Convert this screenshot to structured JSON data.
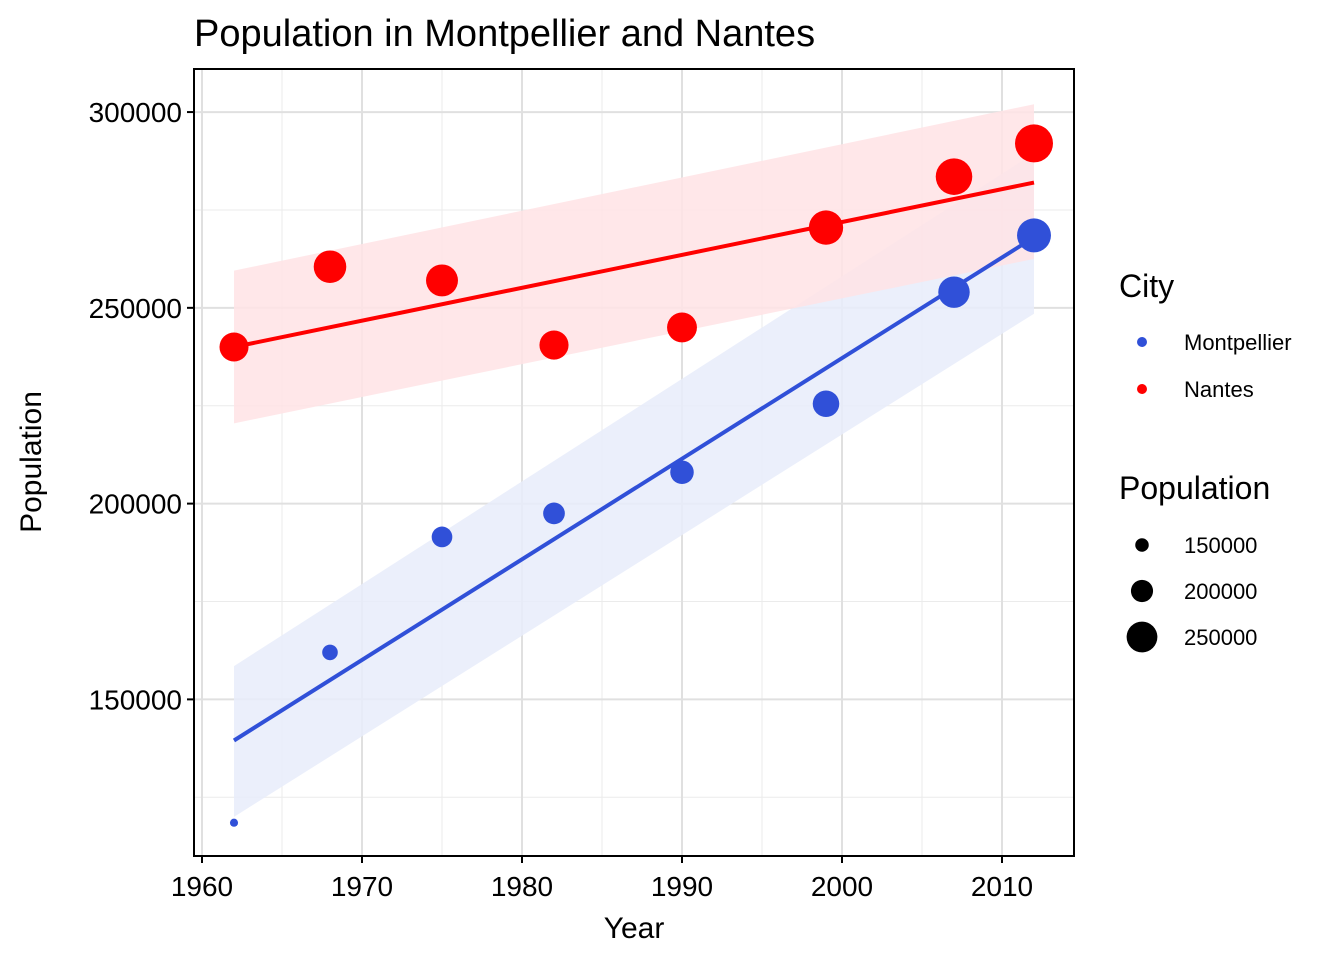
{
  "chart_data": {
    "type": "scatter",
    "title": "Population in Montpellier and Nantes",
    "xlabel": "Year",
    "ylabel": "Population",
    "xlim": [
      1959.5,
      2014.5
    ],
    "ylim": [
      110000,
      311000
    ],
    "xticks": [
      1960,
      1970,
      1980,
      1990,
      2000,
      2010
    ],
    "yticks": [
      150000,
      200000,
      250000,
      300000
    ],
    "xminor": [
      1965,
      1975,
      1985,
      1995,
      2005
    ],
    "yminor": [
      125000,
      175000,
      225000,
      275000
    ],
    "grid": true,
    "legend_position": "right",
    "legend": {
      "color_title": "City",
      "size_title": "Population",
      "size_levels": [
        {
          "label": "150000",
          "value": 150000
        },
        {
          "label": "200000",
          "value": 200000
        },
        {
          "label": "250000",
          "value": 250000
        }
      ]
    },
    "size_range": [
      118000,
      292000
    ],
    "series": [
      {
        "name": "Montpellier",
        "color": "#3050D8",
        "band_color": "#E8ECFA",
        "x": [
          1962,
          1968,
          1975,
          1982,
          1990,
          1999,
          2007,
          2012
        ],
        "y": [
          118500,
          162000,
          191500,
          197500,
          208000,
          225500,
          254000,
          268500
        ],
        "fit": {
          "x": [
            1962,
            2012
          ],
          "y": [
            139500,
            268000
          ]
        },
        "band": {
          "x": [
            1962,
            2012
          ],
          "upper": [
            158500,
            289500
          ],
          "lower": [
            120000,
            248500
          ]
        }
      },
      {
        "name": "Nantes",
        "color": "#FF0000",
        "band_color": "#FFE3E5",
        "x": [
          1962,
          1968,
          1975,
          1982,
          1990,
          1999,
          2007,
          2012
        ],
        "y": [
          240000,
          260500,
          257000,
          240500,
          245000,
          270500,
          283500,
          292000
        ],
        "fit": {
          "x": [
            1962,
            2012
          ],
          "y": [
            240000,
            282000
          ]
        },
        "band": {
          "x": [
            1962,
            2012
          ],
          "upper": [
            259500,
            302000
          ],
          "lower": [
            220500,
            262500
          ]
        }
      }
    ]
  }
}
